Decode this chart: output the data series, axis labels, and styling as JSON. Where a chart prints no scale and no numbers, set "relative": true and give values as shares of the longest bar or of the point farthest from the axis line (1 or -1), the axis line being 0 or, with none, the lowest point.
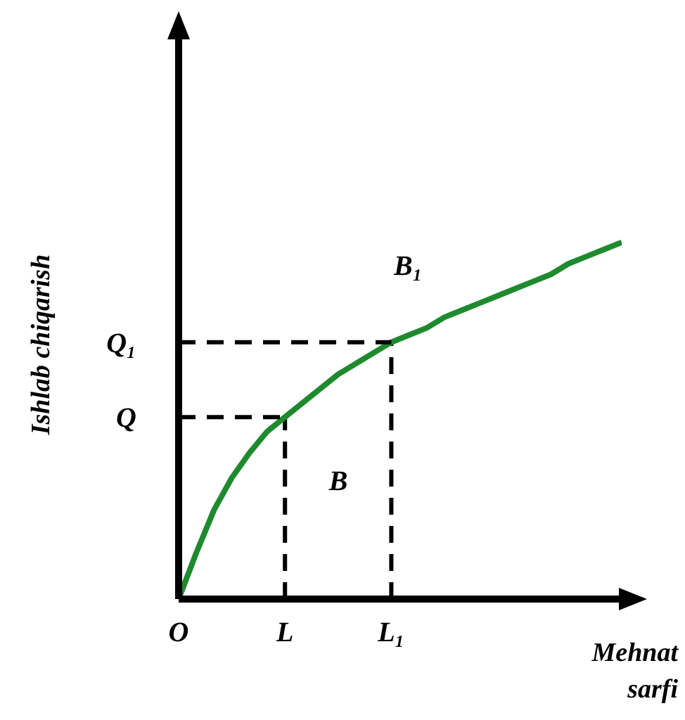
{
  "chart_data": {
    "type": "line",
    "relative": true,
    "xlabel": "Mehnat sarfi",
    "ylabel": "Ishlab chiqarish",
    "tick_labels": "x",
    "grid": false,
    "legend": false,
    "marker": "none",
    "line_style": "solid",
    "categories": [
      "O",
      null,
      null,
      null,
      null,
      null,
      "L",
      null,
      null,
      null,
      null,
      null,
      "L₁",
      null,
      null,
      null,
      null,
      null,
      null,
      null,
      null,
      null,
      null,
      null,
      null,
      null
    ],
    "series": [
      {
        "color": "#1e8a2e",
        "values": [
          0,
          0.13,
          0.25,
          0.34,
          0.41,
          0.47,
          0.51,
          0.55,
          0.59,
          0.63,
          0.66,
          0.69,
          0.72,
          0.74,
          0.76,
          0.79,
          0.81,
          0.83,
          0.85,
          0.87,
          0.89,
          0.91,
          0.94,
          0.96,
          0.98,
          1
        ]
      },
      {
        "name": "Q",
        "color": "#000000",
        "line_style": "dashed",
        "values": [
          0.51,
          0.51,
          0.51,
          0.51,
          0.51,
          0.51,
          0.51,
          null,
          null,
          null,
          null,
          null,
          null,
          null,
          null,
          null,
          null,
          null,
          null,
          null,
          null,
          null,
          null,
          null,
          null,
          null
        ]
      },
      {
        "name": "Q₁",
        "color": "#000000",
        "line_style": "dashed",
        "values": [
          0.72,
          0.72,
          0.72,
          0.72,
          0.72,
          0.72,
          0.72,
          0.72,
          0.72,
          0.72,
          0.72,
          0.72,
          0.72,
          null,
          null,
          null,
          null,
          null,
          null,
          null,
          null,
          null,
          null,
          null,
          null,
          null
        ]
      }
    ],
    "ref_lines": [
      {
        "axis": "x",
        "value": "L",
        "color": "#000000",
        "line_style": "dashed"
      },
      {
        "axis": "x",
        "value": "L₁",
        "color": "#000000",
        "line_style": "dashed"
      }
    ],
    "annotations": [
      "B",
      "B₁"
    ]
  }
}
